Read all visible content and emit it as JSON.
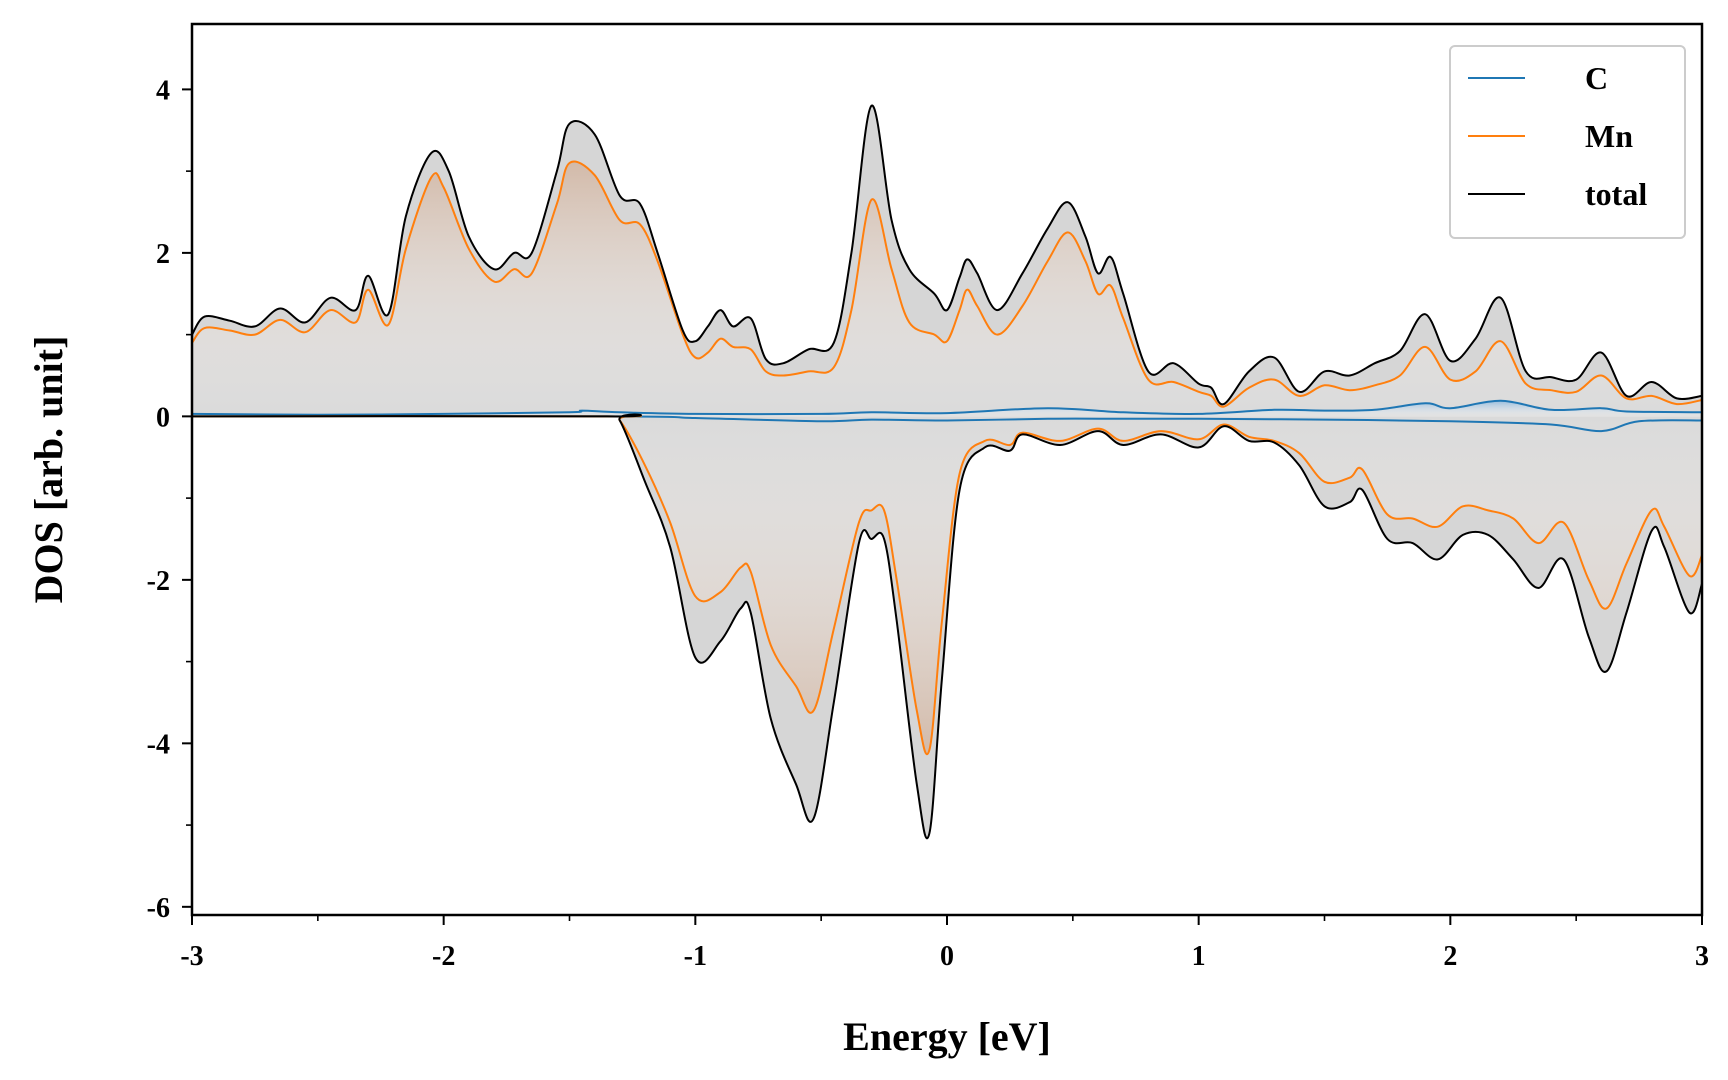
{
  "chart_data": {
    "type": "line",
    "title": "",
    "xlabel": "Energy [eV]",
    "ylabel": "DOS [arb. unit]",
    "xlim": [
      -3,
      3
    ],
    "ylim": [
      -6.1,
      4.8
    ],
    "x_ticks": [
      -3,
      -2,
      -1,
      0,
      1,
      2,
      3
    ],
    "x_ticklabels": [
      "-3",
      "-2",
      "-1",
      "0",
      "1",
      "2",
      "3"
    ],
    "y_ticks": [
      -6,
      -4,
      -2,
      0,
      2,
      4
    ],
    "y_ticklabels": [
      "-6",
      "-4",
      "-2",
      "0",
      "2",
      "4"
    ],
    "grid": false,
    "legend_position": "top-right",
    "fill_under_curves": true,
    "series": [
      {
        "name": "C",
        "color": "#1f77b4",
        "up": [
          [
            -3,
            0.03
          ],
          [
            -2.5,
            0.02
          ],
          [
            -2,
            0.03
          ],
          [
            -1.5,
            0.05
          ],
          [
            -1.45,
            0.07
          ],
          [
            -1.3,
            0.05
          ],
          [
            -1,
            0.03
          ],
          [
            -0.5,
            0.03
          ],
          [
            -0.3,
            0.05
          ],
          [
            0,
            0.04
          ],
          [
            0.4,
            0.1
          ],
          [
            0.7,
            0.05
          ],
          [
            1,
            0.03
          ],
          [
            1.3,
            0.08
          ],
          [
            1.5,
            0.07
          ],
          [
            1.7,
            0.08
          ],
          [
            1.9,
            0.16
          ],
          [
            2.0,
            0.1
          ],
          [
            2.2,
            0.19
          ],
          [
            2.4,
            0.08
          ],
          [
            2.6,
            0.1
          ],
          [
            2.7,
            0.06
          ],
          [
            3,
            0.05
          ]
        ],
        "down": [
          [
            -3,
            0
          ],
          [
            -1.3,
            0
          ],
          [
            -1,
            -0.02
          ],
          [
            -0.5,
            -0.06
          ],
          [
            -0.3,
            -0.04
          ],
          [
            0,
            -0.05
          ],
          [
            0.4,
            -0.03
          ],
          [
            0.7,
            -0.03
          ],
          [
            1,
            -0.03
          ],
          [
            1.5,
            -0.04
          ],
          [
            2,
            -0.06
          ],
          [
            2.4,
            -0.1
          ],
          [
            2.6,
            -0.18
          ],
          [
            2.75,
            -0.06
          ],
          [
            3,
            -0.05
          ]
        ]
      },
      {
        "name": "Mn",
        "color": "#ff7f0e",
        "up": [
          [
            -3,
            0.9
          ],
          [
            -2.95,
            1.08
          ],
          [
            -2.85,
            1.05
          ],
          [
            -2.75,
            1.0
          ],
          [
            -2.65,
            1.18
          ],
          [
            -2.55,
            1.03
          ],
          [
            -2.45,
            1.3
          ],
          [
            -2.35,
            1.15
          ],
          [
            -2.3,
            1.55
          ],
          [
            -2.22,
            1.12
          ],
          [
            -2.15,
            2.05
          ],
          [
            -2.05,
            2.92
          ],
          [
            -2.0,
            2.8
          ],
          [
            -1.9,
            2.05
          ],
          [
            -1.8,
            1.65
          ],
          [
            -1.72,
            1.8
          ],
          [
            -1.65,
            1.75
          ],
          [
            -1.55,
            2.6
          ],
          [
            -1.5,
            3.1
          ],
          [
            -1.4,
            2.95
          ],
          [
            -1.3,
            2.4
          ],
          [
            -1.22,
            2.35
          ],
          [
            -1.15,
            1.9
          ],
          [
            -1.05,
            1.0
          ],
          [
            -1.0,
            0.72
          ],
          [
            -0.95,
            0.78
          ],
          [
            -0.9,
            0.95
          ],
          [
            -0.85,
            0.85
          ],
          [
            -0.78,
            0.82
          ],
          [
            -0.72,
            0.55
          ],
          [
            -0.65,
            0.5
          ],
          [
            -0.55,
            0.55
          ],
          [
            -0.45,
            0.6
          ],
          [
            -0.38,
            1.3
          ],
          [
            -0.3,
            2.65
          ],
          [
            -0.22,
            1.8
          ],
          [
            -0.15,
            1.15
          ],
          [
            -0.05,
            1.0
          ],
          [
            0,
            0.92
          ],
          [
            0.05,
            1.3
          ],
          [
            0.08,
            1.55
          ],
          [
            0.12,
            1.35
          ],
          [
            0.2,
            1.0
          ],
          [
            0.3,
            1.35
          ],
          [
            0.4,
            1.9
          ],
          [
            0.48,
            2.25
          ],
          [
            0.55,
            1.9
          ],
          [
            0.6,
            1.5
          ],
          [
            0.65,
            1.6
          ],
          [
            0.7,
            1.2
          ],
          [
            0.8,
            0.45
          ],
          [
            0.9,
            0.42
          ],
          [
            1.0,
            0.3
          ],
          [
            1.05,
            0.25
          ],
          [
            1.1,
            0.12
          ],
          [
            1.2,
            0.35
          ],
          [
            1.3,
            0.45
          ],
          [
            1.4,
            0.25
          ],
          [
            1.5,
            0.38
          ],
          [
            1.6,
            0.32
          ],
          [
            1.7,
            0.38
          ],
          [
            1.8,
            0.5
          ],
          [
            1.9,
            0.85
          ],
          [
            2.0,
            0.45
          ],
          [
            2.1,
            0.55
          ],
          [
            2.2,
            0.92
          ],
          [
            2.3,
            0.4
          ],
          [
            2.4,
            0.32
          ],
          [
            2.5,
            0.3
          ],
          [
            2.6,
            0.5
          ],
          [
            2.7,
            0.22
          ],
          [
            2.8,
            0.25
          ],
          [
            2.9,
            0.15
          ],
          [
            3,
            0.2
          ]
        ],
        "down": [
          [
            -3,
            0
          ],
          [
            -1.35,
            0
          ],
          [
            -1.3,
            -0.05
          ],
          [
            -1.2,
            -0.6
          ],
          [
            -1.1,
            -1.3
          ],
          [
            -1.0,
            -2.2
          ],
          [
            -0.9,
            -2.15
          ],
          [
            -0.82,
            -1.85
          ],
          [
            -0.78,
            -1.9
          ],
          [
            -0.7,
            -2.8
          ],
          [
            -0.6,
            -3.3
          ],
          [
            -0.53,
            -3.6
          ],
          [
            -0.45,
            -2.6
          ],
          [
            -0.35,
            -1.3
          ],
          [
            -0.3,
            -1.15
          ],
          [
            -0.25,
            -1.15
          ],
          [
            -0.2,
            -2.0
          ],
          [
            -0.12,
            -3.6
          ],
          [
            -0.07,
            -4.08
          ],
          [
            -0.02,
            -2.5
          ],
          [
            0.05,
            -0.7
          ],
          [
            0.15,
            -0.3
          ],
          [
            0.25,
            -0.35
          ],
          [
            0.3,
            -0.2
          ],
          [
            0.45,
            -0.3
          ],
          [
            0.6,
            -0.15
          ],
          [
            0.7,
            -0.3
          ],
          [
            0.85,
            -0.18
          ],
          [
            1.0,
            -0.28
          ],
          [
            1.1,
            -0.1
          ],
          [
            1.2,
            -0.25
          ],
          [
            1.3,
            -0.3
          ],
          [
            1.4,
            -0.45
          ],
          [
            1.5,
            -0.8
          ],
          [
            1.6,
            -0.75
          ],
          [
            1.65,
            -0.65
          ],
          [
            1.75,
            -1.2
          ],
          [
            1.85,
            -1.25
          ],
          [
            1.95,
            -1.35
          ],
          [
            2.05,
            -1.1
          ],
          [
            2.15,
            -1.15
          ],
          [
            2.25,
            -1.25
          ],
          [
            2.35,
            -1.55
          ],
          [
            2.45,
            -1.3
          ],
          [
            2.55,
            -2.0
          ],
          [
            2.62,
            -2.35
          ],
          [
            2.7,
            -1.8
          ],
          [
            2.8,
            -1.15
          ],
          [
            2.85,
            -1.35
          ],
          [
            2.95,
            -1.95
          ],
          [
            3,
            -1.7
          ]
        ]
      },
      {
        "name": "total",
        "color": "#000000",
        "up": [
          [
            -3,
            1.0
          ],
          [
            -2.95,
            1.22
          ],
          [
            -2.85,
            1.17
          ],
          [
            -2.75,
            1.1
          ],
          [
            -2.65,
            1.32
          ],
          [
            -2.55,
            1.15
          ],
          [
            -2.45,
            1.45
          ],
          [
            -2.35,
            1.3
          ],
          [
            -2.3,
            1.72
          ],
          [
            -2.22,
            1.25
          ],
          [
            -2.15,
            2.45
          ],
          [
            -2.05,
            3.22
          ],
          [
            -1.98,
            3.0
          ],
          [
            -1.9,
            2.2
          ],
          [
            -1.8,
            1.8
          ],
          [
            -1.72,
            2.0
          ],
          [
            -1.65,
            2.0
          ],
          [
            -1.55,
            3.0
          ],
          [
            -1.5,
            3.58
          ],
          [
            -1.4,
            3.45
          ],
          [
            -1.3,
            2.7
          ],
          [
            -1.22,
            2.6
          ],
          [
            -1.15,
            2.0
          ],
          [
            -1.05,
            1.05
          ],
          [
            -1.0,
            0.92
          ],
          [
            -0.95,
            1.1
          ],
          [
            -0.9,
            1.3
          ],
          [
            -0.85,
            1.1
          ],
          [
            -0.78,
            1.2
          ],
          [
            -0.72,
            0.7
          ],
          [
            -0.65,
            0.65
          ],
          [
            -0.55,
            0.82
          ],
          [
            -0.45,
            0.9
          ],
          [
            -0.38,
            2.0
          ],
          [
            -0.3,
            3.8
          ],
          [
            -0.22,
            2.4
          ],
          [
            -0.15,
            1.8
          ],
          [
            -0.05,
            1.5
          ],
          [
            0,
            1.3
          ],
          [
            0.05,
            1.7
          ],
          [
            0.08,
            1.92
          ],
          [
            0.12,
            1.75
          ],
          [
            0.2,
            1.3
          ],
          [
            0.3,
            1.75
          ],
          [
            0.4,
            2.3
          ],
          [
            0.48,
            2.62
          ],
          [
            0.55,
            2.2
          ],
          [
            0.6,
            1.75
          ],
          [
            0.65,
            1.95
          ],
          [
            0.7,
            1.5
          ],
          [
            0.8,
            0.55
          ],
          [
            0.9,
            0.65
          ],
          [
            1.0,
            0.4
          ],
          [
            1.05,
            0.35
          ],
          [
            1.1,
            0.15
          ],
          [
            1.2,
            0.55
          ],
          [
            1.3,
            0.72
          ],
          [
            1.4,
            0.3
          ],
          [
            1.5,
            0.55
          ],
          [
            1.6,
            0.5
          ],
          [
            1.7,
            0.65
          ],
          [
            1.8,
            0.8
          ],
          [
            1.9,
            1.25
          ],
          [
            2.0,
            0.68
          ],
          [
            2.1,
            0.95
          ],
          [
            2.2,
            1.45
          ],
          [
            2.3,
            0.55
          ],
          [
            2.4,
            0.48
          ],
          [
            2.5,
            0.45
          ],
          [
            2.6,
            0.78
          ],
          [
            2.7,
            0.25
          ],
          [
            2.8,
            0.42
          ],
          [
            2.9,
            0.22
          ],
          [
            3,
            0.25
          ]
        ],
        "down": [
          [
            -3,
            0
          ],
          [
            -1.35,
            0
          ],
          [
            -1.3,
            -0.05
          ],
          [
            -1.2,
            -0.8
          ],
          [
            -1.1,
            -1.6
          ],
          [
            -1.0,
            -2.95
          ],
          [
            -0.9,
            -2.75
          ],
          [
            -0.82,
            -2.35
          ],
          [
            -0.78,
            -2.4
          ],
          [
            -0.7,
            -3.7
          ],
          [
            -0.6,
            -4.5
          ],
          [
            -0.53,
            -4.92
          ],
          [
            -0.45,
            -3.5
          ],
          [
            -0.35,
            -1.55
          ],
          [
            -0.3,
            -1.5
          ],
          [
            -0.25,
            -1.5
          ],
          [
            -0.2,
            -2.5
          ],
          [
            -0.12,
            -4.5
          ],
          [
            -0.07,
            -5.1
          ],
          [
            -0.02,
            -3.2
          ],
          [
            0.05,
            -0.9
          ],
          [
            0.15,
            -0.38
          ],
          [
            0.25,
            -0.42
          ],
          [
            0.3,
            -0.22
          ],
          [
            0.45,
            -0.35
          ],
          [
            0.6,
            -0.18
          ],
          [
            0.7,
            -0.35
          ],
          [
            0.85,
            -0.22
          ],
          [
            1.0,
            -0.38
          ],
          [
            1.1,
            -0.12
          ],
          [
            1.2,
            -0.3
          ],
          [
            1.3,
            -0.32
          ],
          [
            1.4,
            -0.6
          ],
          [
            1.5,
            -1.1
          ],
          [
            1.6,
            -1.05
          ],
          [
            1.65,
            -0.9
          ],
          [
            1.75,
            -1.5
          ],
          [
            1.85,
            -1.55
          ],
          [
            1.95,
            -1.75
          ],
          [
            2.05,
            -1.45
          ],
          [
            2.15,
            -1.45
          ],
          [
            2.25,
            -1.75
          ],
          [
            2.35,
            -2.1
          ],
          [
            2.45,
            -1.75
          ],
          [
            2.55,
            -2.7
          ],
          [
            2.62,
            -3.12
          ],
          [
            2.7,
            -2.4
          ],
          [
            2.8,
            -1.4
          ],
          [
            2.85,
            -1.6
          ],
          [
            2.95,
            -2.4
          ],
          [
            3,
            -2.05
          ]
        ]
      }
    ]
  }
}
